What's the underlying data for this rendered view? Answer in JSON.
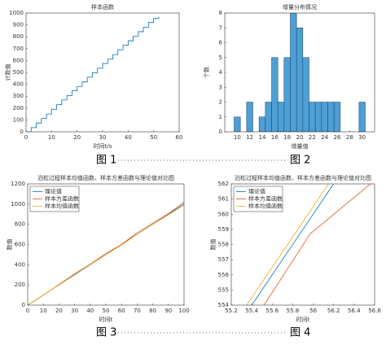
{
  "chart_data": [
    {
      "type": "step",
      "title": "样本函数",
      "x_label": "时间t/s",
      "y_label": "计数值",
      "x": [
        0,
        2,
        4,
        6,
        8,
        10,
        12,
        14,
        16,
        18,
        20,
        22,
        24,
        26,
        28,
        30,
        32,
        34,
        36,
        38,
        40,
        42,
        44,
        46,
        48,
        50,
        52
      ],
      "series": [
        {
          "name": "样本函数",
          "color": "#0072bd",
          "values": [
            0,
            35,
            74,
            112,
            150,
            190,
            228,
            268,
            305,
            345,
            382,
            420,
            460,
            498,
            535,
            575,
            612,
            650,
            690,
            728,
            766,
            805,
            843,
            880,
            920,
            955,
            965
          ]
        }
      ],
      "xlim": [
        0,
        60
      ],
      "xticks": [
        0,
        10,
        20,
        30,
        40,
        50,
        60
      ],
      "ylim": [
        0,
        1000
      ],
      "yticks": [
        0,
        100,
        200,
        300,
        400,
        500,
        600,
        700,
        800,
        900,
        1000
      ]
    },
    {
      "type": "histogram",
      "title": "增量分布情况",
      "x_label": "增量值",
      "y_label": "个数",
      "bins": [
        9.5,
        10.5,
        11.5,
        12.5,
        13.5,
        14.5,
        15.5,
        16.5,
        17.5,
        18.5,
        19.5,
        20.5,
        21.5,
        22.5,
        23.5,
        24.5,
        25.5,
        26.5,
        27.5,
        28.5,
        29.5,
        30.5
      ],
      "values": [
        1,
        0,
        2,
        0,
        1,
        2,
        5,
        2,
        5,
        8,
        7,
        5,
        2,
        2,
        2,
        2,
        2,
        0,
        0,
        0,
        2
      ],
      "color": "#4d9fd6",
      "xlim": [
        8,
        32
      ],
      "xticks": [
        10,
        12,
        14,
        16,
        18,
        20,
        22,
        24,
        26,
        28,
        30
      ],
      "ylim": [
        0,
        8
      ],
      "yticks": [
        0,
        1,
        2,
        3,
        4,
        5,
        6,
        7,
        8
      ]
    },
    {
      "type": "line",
      "title": "泊松过程样本均值函数、样本方差函数与理论值对比图",
      "x_label": "时间t",
      "y_label": "数值",
      "x": [
        0,
        10,
        20,
        30,
        40,
        50,
        60,
        70,
        80,
        90,
        100
      ],
      "series": [
        {
          "name": "理论值",
          "color": "#0072bd",
          "values": [
            0,
            100,
            200,
            300,
            400,
            500,
            600,
            700,
            800,
            900,
            1000
          ]
        },
        {
          "name": "样本方差函数",
          "color": "#d95319",
          "values": [
            0,
            98,
            205,
            310,
            405,
            510,
            600,
            715,
            810,
            905,
            1020
          ]
        },
        {
          "name": "样本均值函数",
          "color": "#edb120",
          "values": [
            0,
            100,
            200,
            305,
            400,
            500,
            595,
            700,
            800,
            895,
            990
          ]
        }
      ],
      "xlim": [
        0,
        100
      ],
      "xticks": [
        0,
        10,
        20,
        30,
        40,
        50,
        60,
        70,
        80,
        90,
        100
      ],
      "ylim": [
        0,
        1200
      ],
      "yticks": [
        0,
        200,
        400,
        600,
        800,
        1000,
        1200
      ],
      "legend": "upper left"
    },
    {
      "type": "line",
      "title": "泊松过程样本均值函数、样本方差函数与理论值对比图",
      "x_label": "时间t",
      "y_label": "数值",
      "series": [
        {
          "name": "理论值",
          "color": "#0072bd",
          "x": [
            55.4,
            56.2
          ],
          "values": [
            554,
            562
          ]
        },
        {
          "name": "样本方差函数",
          "color": "#d95319",
          "x": [
            55.52,
            55.97,
            56.56
          ],
          "values": [
            554,
            558.7,
            562
          ]
        },
        {
          "name": "样本均值函数",
          "color": "#edb120",
          "x": [
            55.35,
            56.15
          ],
          "values": [
            554,
            562
          ]
        }
      ],
      "xlim": [
        55.2,
        56.6
      ],
      "xticks": [
        55.2,
        55.4,
        55.6,
        55.8,
        56,
        56.2,
        56.4,
        56.6
      ],
      "ylim": [
        554,
        562
      ],
      "yticks": [
        554,
        555,
        556,
        557,
        558,
        559,
        560,
        561,
        562
      ],
      "legend": "upper left"
    }
  ],
  "captions": [
    "图 1",
    "图 2",
    "图 3",
    "图 4"
  ]
}
